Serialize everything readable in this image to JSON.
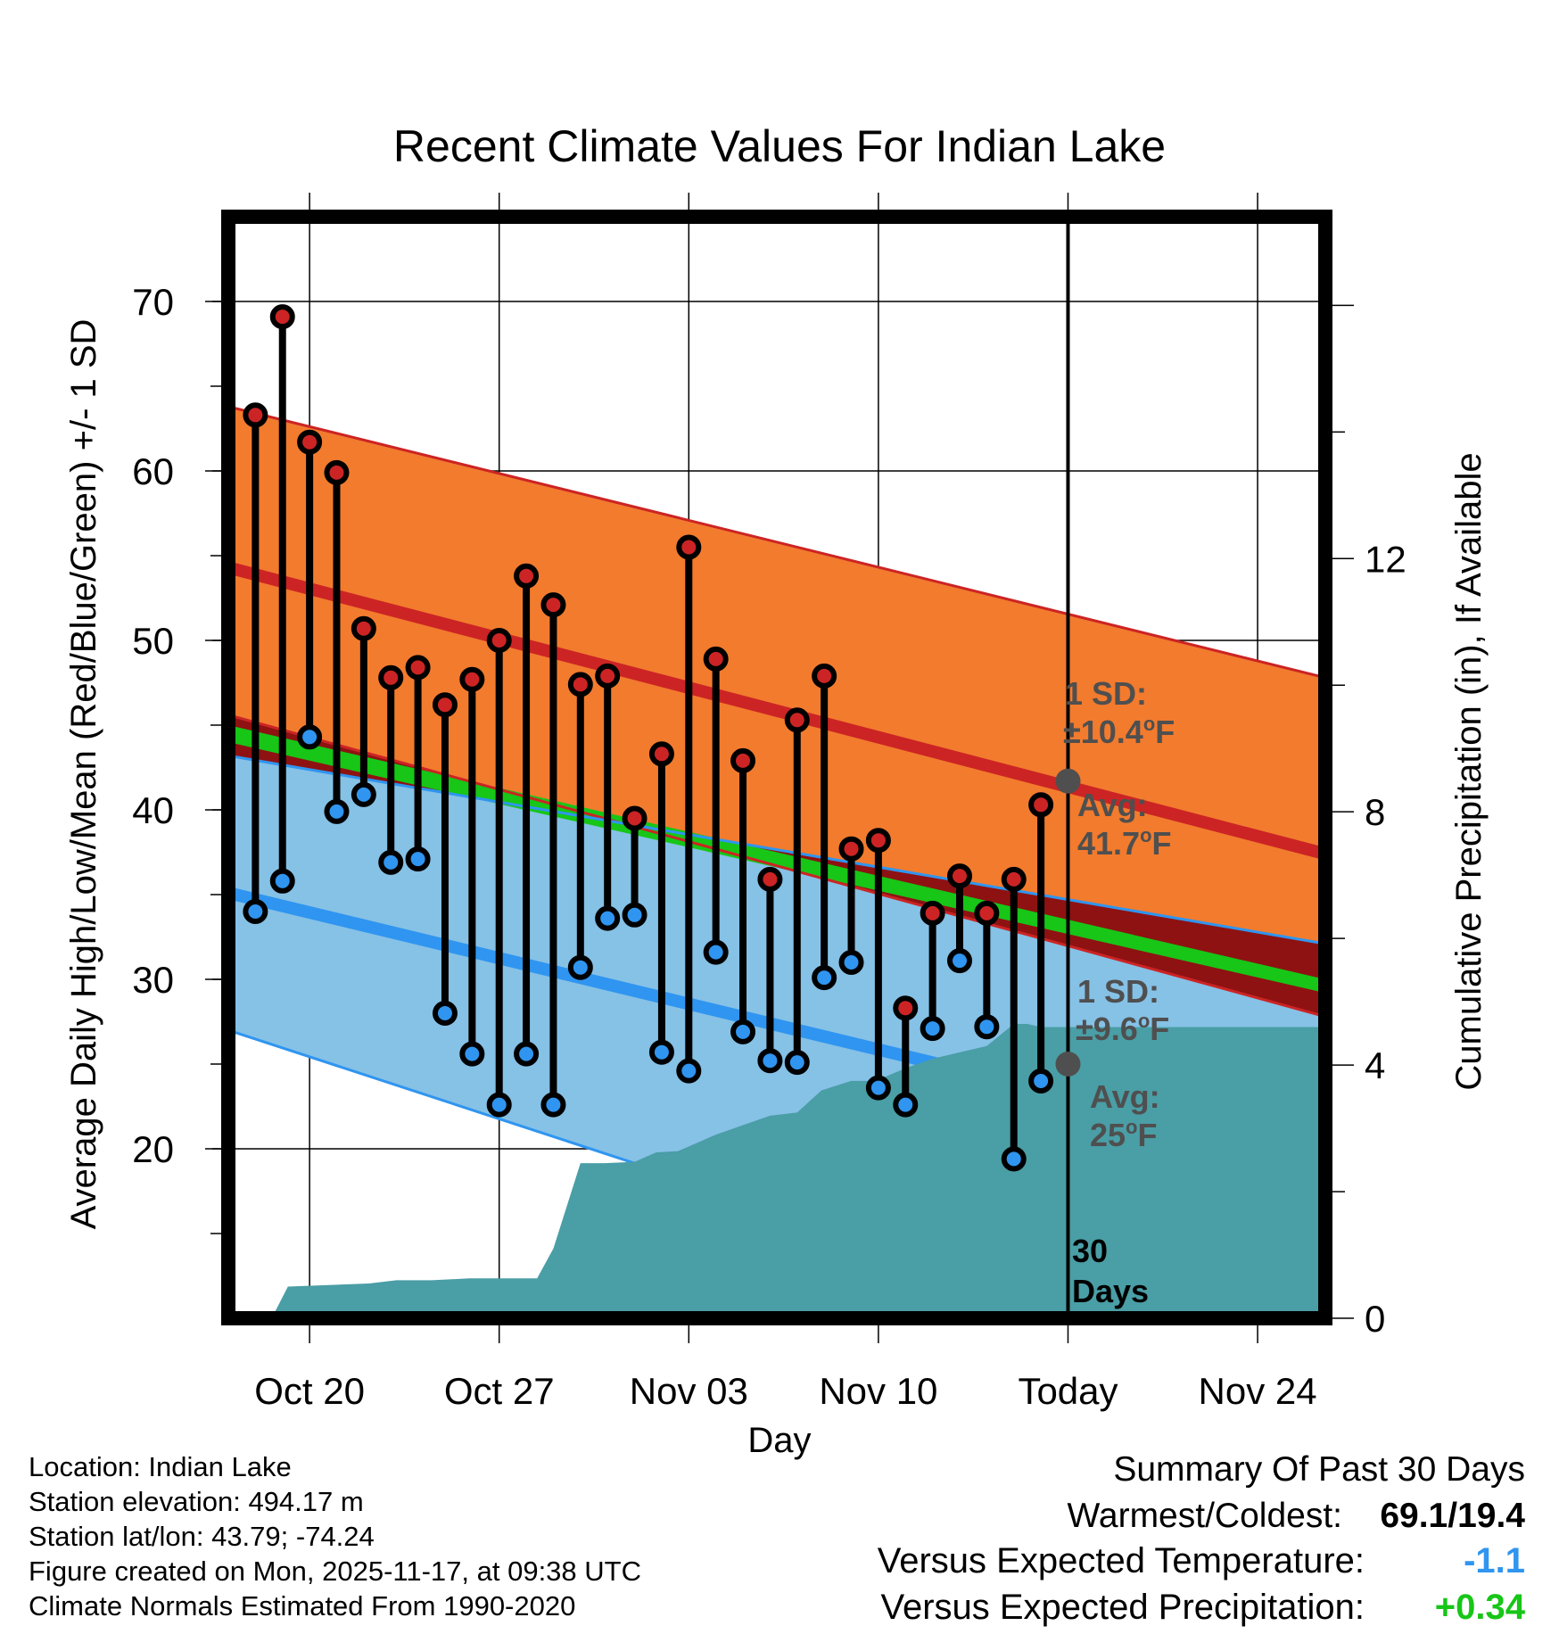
{
  "chart_data": {
    "type": "line",
    "title": "Recent Climate Values For Indian Lake",
    "xlabel": "Day",
    "ylabel": "Average Daily High/Low/Mean (Red/Blue/Green) +/- 1 SD",
    "y2label": "Cumulative Precipitation (in), If Available",
    "ylim": [
      10,
      75
    ],
    "y_ticks": [
      20,
      30,
      40,
      50,
      60,
      70
    ],
    "y2lim": [
      0,
      17.4
    ],
    "y2_ticks": [
      0,
      4,
      8,
      12
    ],
    "x_tick_labels": [
      "Oct 20",
      "Oct 27",
      "Nov 03",
      "Nov 10",
      "Today",
      "Nov 24"
    ],
    "x_tick_days": [
      -28,
      -21,
      -14,
      -7,
      0,
      7
    ],
    "xlim_days": [
      -31,
      9.5
    ],
    "normals": {
      "high_mean": [
        54.3,
        37.4
      ],
      "high_upper": [
        63.8,
        47.8
      ],
      "high_lower": [
        45.6,
        27.8
      ],
      "low_mean": [
        35.1,
        19.5
      ],
      "low_upper": [
        43.2,
        32.1
      ],
      "low_lower": [
        27.0,
        5.8
      ],
      "mean_upper": [
        45.0,
        30.0
      ],
      "mean_lower": [
        44.0,
        29.2
      ]
    },
    "colors": {
      "high_band": "#f27b2e",
      "high_line": "#cc2424",
      "low_band": "#86c1e6",
      "low_line": "#2f95f0",
      "mean_band": "#17c617",
      "precip": "#4a9ea6",
      "high_dot": "#cc2424",
      "low_dot": "#2f95f0",
      "overlap": "#8e1212",
      "annotation": "#4f4f4f",
      "marker": "#4f4f4f"
    },
    "series": [
      {
        "name": "Daily High",
        "x": [
          -30,
          -29,
          -28,
          -27,
          -26,
          -25,
          -24,
          -23,
          -22,
          -21,
          -20,
          -19,
          -18,
          -17,
          -16,
          -15,
          -14,
          -13,
          -12,
          -11,
          -10,
          -9,
          -8,
          -7,
          -6,
          -5,
          -4,
          -3,
          -2,
          -1
        ],
        "values": [
          63.3,
          69.1,
          61.7,
          59.9,
          50.7,
          47.8,
          48.4,
          46.2,
          47.7,
          50.0,
          53.8,
          52.1,
          47.4,
          47.9,
          39.5,
          43.3,
          55.5,
          48.9,
          42.9,
          35.9,
          45.3,
          47.9,
          37.7,
          38.2,
          28.3,
          33.9,
          36.1,
          33.9,
          35.9,
          40.3
        ]
      },
      {
        "name": "Daily Low",
        "x": [
          -30,
          -29,
          -28,
          -27,
          -26,
          -25,
          -24,
          -23,
          -22,
          -21,
          -20,
          -19,
          -18,
          -17,
          -16,
          -15,
          -14,
          -13,
          -12,
          -11,
          -10,
          -9,
          -8,
          -7,
          -6,
          -5,
          -4,
          -3,
          -2,
          -1
        ],
        "values": [
          34.0,
          35.8,
          44.3,
          39.9,
          40.9,
          36.9,
          37.1,
          28.0,
          25.6,
          22.6,
          25.6,
          22.6,
          30.7,
          33.6,
          33.8,
          25.7,
          24.6,
          31.6,
          26.9,
          25.2,
          25.1,
          30.1,
          31.0,
          23.6,
          22.6,
          27.1,
          31.1,
          27.2,
          19.4,
          24.0
        ]
      },
      {
        "name": "Cumulative Precipitation",
        "x": [
          -29.4,
          -28.8,
          -25.8,
          -24.8,
          -23.5,
          -22.1,
          -21.0,
          -19.6,
          -19.0,
          -18.0,
          -17.1,
          -16.0,
          -15.2,
          -14.4,
          -13.0,
          -12.0,
          -11.0,
          -10.0,
          -9.1,
          -8.0,
          -7.1,
          -6.0,
          -5.0,
          -4.0,
          -3.0,
          -2.0,
          -1.5,
          -1.0,
          0.0,
          9.5
        ],
        "values": [
          0.0,
          0.5,
          0.55,
          0.6,
          0.6,
          0.63,
          0.63,
          0.63,
          1.1,
          2.45,
          2.45,
          2.47,
          2.62,
          2.64,
          2.9,
          3.05,
          3.2,
          3.25,
          3.6,
          3.75,
          3.75,
          3.95,
          4.1,
          4.2,
          4.3,
          4.65,
          4.65,
          4.6,
          4.6,
          4.6
        ]
      }
    ],
    "avg_markers": [
      {
        "label": "Avg:",
        "value_label": "41.7",
        "value": 41.7,
        "unit": "F"
      },
      {
        "label": "Avg:",
        "value_label": "25",
        "value": 25.0,
        "unit": "F"
      }
    ],
    "sd_labels": [
      {
        "label": "1 SD:",
        "value_label": "±10.4",
        "unit": "F"
      },
      {
        "label": "1 SD:",
        "value_label": "±9.6",
        "unit": "F"
      }
    ],
    "degree_symbol": "o",
    "period_label_1": "30",
    "period_label_2": "Days"
  },
  "station_info": {
    "location": "Location: Indian Lake",
    "elevation": "Station elevation: 494.17 m",
    "latlon": "Station lat/lon: 43.79; -74.24",
    "created": "Figure created on Mon, 2025-11-17, at 09:38 UTC",
    "normals": "Climate Normals Estimated From 1990-2020"
  },
  "summary": {
    "title": "Summary Of Past 30 Days",
    "warmest_label": "Warmest/Coldest:",
    "warmest_value": "69.1/19.4",
    "temp_label": "Versus Expected Temperature:",
    "temp_value": "-1.1",
    "temp_color": "#2f95f0",
    "precip_label": "Versus Expected Precipitation:",
    "precip_value": "+0.34",
    "precip_color": "#17c617"
  }
}
